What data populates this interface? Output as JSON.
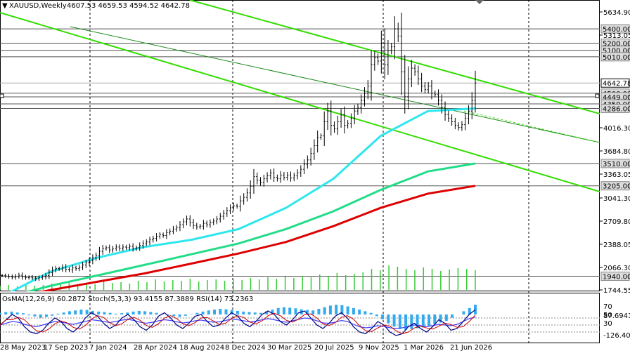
{
  "header": {
    "symbol": "XAUUSD,Weekly",
    "ohlc": "4607.53 4659.53 4594.52 4642.78"
  },
  "sub_header": {
    "text": "OsMA(12,26,9) 60.2872  Stoch(5,3,3) 93.4155 87.3889  RSI(14) 73.2363"
  },
  "colors": {
    "candle": "#000000",
    "ma_cyan": "#2ee6ee",
    "ma_green": "#22dd88",
    "ma_red": "#dd0000",
    "channel": "#33dd00",
    "hist_main": "#33cc33",
    "osma": "#33aaee",
    "stoch_main": "#000080",
    "stoch_signal": "#cc0000",
    "rsi": "#4444ff",
    "current_price_bg": "#ffffff"
  },
  "chart_data": [
    {
      "type": "candlestick",
      "title": "XAUUSD,Weekly",
      "x_tick_labels": [
        "28 May 2023",
        "17 Sep 2023",
        "7 Jan 2024",
        "28 Apr 2024",
        "18 Aug 2024",
        "8 Dec 2024",
        "30 Mar 2025",
        "20 Jul 2025",
        "9 Nov 2025",
        "1 Mar 2026",
        "21 Jun 2026"
      ],
      "y_tick_labels": [
        "5634.90",
        "5313.05",
        "4016.30",
        "3684.80",
        "3363.05",
        "3041.30",
        "2709.80",
        "2388.05",
        "2066.30",
        "1744.55"
      ],
      "price_level_labels": [
        "5400.00",
        "5200.00",
        "5100.00",
        "5010.00",
        "4500.00",
        "4449.00",
        "4350.00",
        "4286.00",
        "3510.00",
        "3205.00",
        "1940.00"
      ],
      "current_price_label": "4642.78",
      "ylim": [
        1744.55,
        5800
      ],
      "last_bar": {
        "open": 4607.53,
        "high": 4659.53,
        "low": 4594.52,
        "close": 4642.78
      },
      "close_series": [
        1950,
        1945,
        1935,
        1925,
        1940,
        1955,
        1930,
        1920,
        1925,
        1915,
        1905,
        1920,
        1930,
        1950,
        1990,
        2030,
        2050,
        2045,
        2070,
        2040,
        2030,
        2060,
        2050,
        2070,
        2100,
        2130,
        2160,
        2200,
        2230,
        2290,
        2330,
        2340,
        2310,
        2330,
        2350,
        2330,
        2350,
        2340,
        2360,
        2330,
        2340,
        2370,
        2400,
        2420,
        2450,
        2470,
        2500,
        2520,
        2510,
        2550,
        2570,
        2600,
        2620,
        2660,
        2700,
        2740,
        2690,
        2650,
        2630,
        2640,
        2680,
        2660,
        2690,
        2710,
        2740,
        2780,
        2820,
        2860,
        2900,
        2930,
        2920,
        3000,
        3050,
        3110,
        3200,
        3330,
        3280,
        3250,
        3300,
        3340,
        3380,
        3320,
        3300,
        3350,
        3320,
        3350,
        3310,
        3340,
        3380,
        3430,
        3500,
        3560,
        3650,
        3760,
        3880,
        3900,
        4100,
        4250,
        4050,
        4000,
        4100,
        4200,
        4050,
        4080,
        4150,
        4250,
        4300,
        4400,
        4500,
        4600,
        4900,
        5000,
        4950,
        5200,
        4900,
        5100,
        5150,
        5400,
        5300,
        4800,
        4450,
        4700,
        4850,
        4800,
        4700,
        4600,
        4550,
        4600,
        4500,
        4480,
        4400,
        4300,
        4200,
        4150,
        4100,
        4050,
        4020,
        4060,
        4150,
        4250,
        4400,
        4642.78
      ],
      "series": [
        {
          "name": "",
          "kind": "MA fast",
          "values": [
            1650,
            2000,
            2200,
            2350,
            2450,
            2600,
            2900,
            3300,
            3900,
            4250,
            4286
          ]
        },
        {
          "name": "",
          "kind": "MA medium",
          "values": [
            1620,
            1800,
            1950,
            2100,
            2250,
            2400,
            2600,
            2850,
            3150,
            3400,
            3510
          ]
        },
        {
          "name": "",
          "kind": "MA slow",
          "values": [
            1600,
            1740,
            1860,
            1980,
            2120,
            2260,
            2420,
            2640,
            2900,
            3100,
            3205
          ]
        }
      ],
      "volume_values": [
        6,
        7,
        5,
        8,
        6,
        7,
        9,
        8,
        10,
        7,
        9,
        8,
        12,
        10,
        11,
        9,
        13,
        11,
        15,
        12,
        14,
        13,
        16,
        12,
        14,
        15,
        13,
        16,
        14,
        17,
        15,
        18,
        16,
        19,
        17,
        20,
        18,
        22,
        20,
        24,
        21,
        23,
        25,
        30,
        28,
        35,
        33,
        30,
        28,
        32,
        30,
        27,
        29,
        31,
        30,
        28
      ],
      "grid": true
    },
    {
      "type": "indicator",
      "title": "OsMA(12,26,9) Stoch(5,3,3) RSI(14)",
      "y_tick_labels": [
        "87.6941",
        "70",
        "50",
        "30",
        "-126.4087"
      ],
      "osma_last": 60.2872,
      "stoch_main_last": 93.4155,
      "stoch_signal_last": 87.3889,
      "rsi_last": 73.2363,
      "osma_values": [
        10,
        15,
        18,
        12,
        8,
        -5,
        -12,
        -20,
        -15,
        -8,
        5,
        12,
        20,
        25,
        30,
        28,
        22,
        18,
        15,
        10,
        5,
        8,
        12,
        18,
        22,
        20,
        15,
        10,
        5,
        -5,
        -10,
        -15,
        -8,
        2,
        10,
        18,
        25,
        30,
        35,
        32,
        28,
        22,
        18,
        15,
        12,
        10,
        20,
        30,
        40,
        45,
        42,
        38,
        32,
        28,
        25,
        35,
        45,
        55,
        60,
        58,
        50,
        40,
        30,
        20,
        10,
        -10,
        -30,
        -55,
        -75,
        -90,
        -95,
        -90,
        -85,
        -80,
        -70,
        -60,
        -50,
        -40,
        -20,
        0,
        20,
        40,
        60.2872
      ],
      "stoch_values": [
        50,
        65,
        80,
        70,
        45,
        30,
        25,
        35,
        55,
        70,
        60,
        40,
        30,
        45,
        70,
        85,
        75,
        55,
        40,
        50,
        70,
        80,
        65,
        45,
        35,
        50,
        75,
        85,
        70,
        50,
        40,
        55,
        75,
        80,
        60,
        45,
        50,
        70,
        85,
        75,
        55,
        45,
        60,
        80,
        90,
        80,
        60,
        50,
        65,
        85,
        90,
        70,
        50,
        40,
        55,
        75,
        85,
        70,
        45,
        30,
        25,
        40,
        60,
        50,
        30,
        20,
        25,
        45,
        55,
        40,
        30,
        45,
        65,
        55,
        35,
        40,
        60,
        80,
        93.4155
      ],
      "rsi_values": [
        50,
        55,
        60,
        58,
        52,
        48,
        45,
        50,
        55,
        60,
        58,
        55,
        52,
        56,
        60,
        65,
        63,
        60,
        57,
        60,
        64,
        66,
        63,
        58,
        55,
        58,
        62,
        65,
        63,
        59,
        56,
        58,
        62,
        64,
        61,
        58,
        59,
        63,
        67,
        65,
        62,
        59,
        61,
        65,
        68,
        65,
        61,
        58,
        62,
        66,
        70,
        68,
        62,
        56,
        55,
        58,
        63,
        60,
        52,
        45,
        42,
        44,
        48,
        46,
        42,
        40,
        42,
        46,
        50,
        48,
        45,
        48,
        52,
        50,
        48,
        52,
        60,
        68,
        73.2363
      ]
    }
  ]
}
